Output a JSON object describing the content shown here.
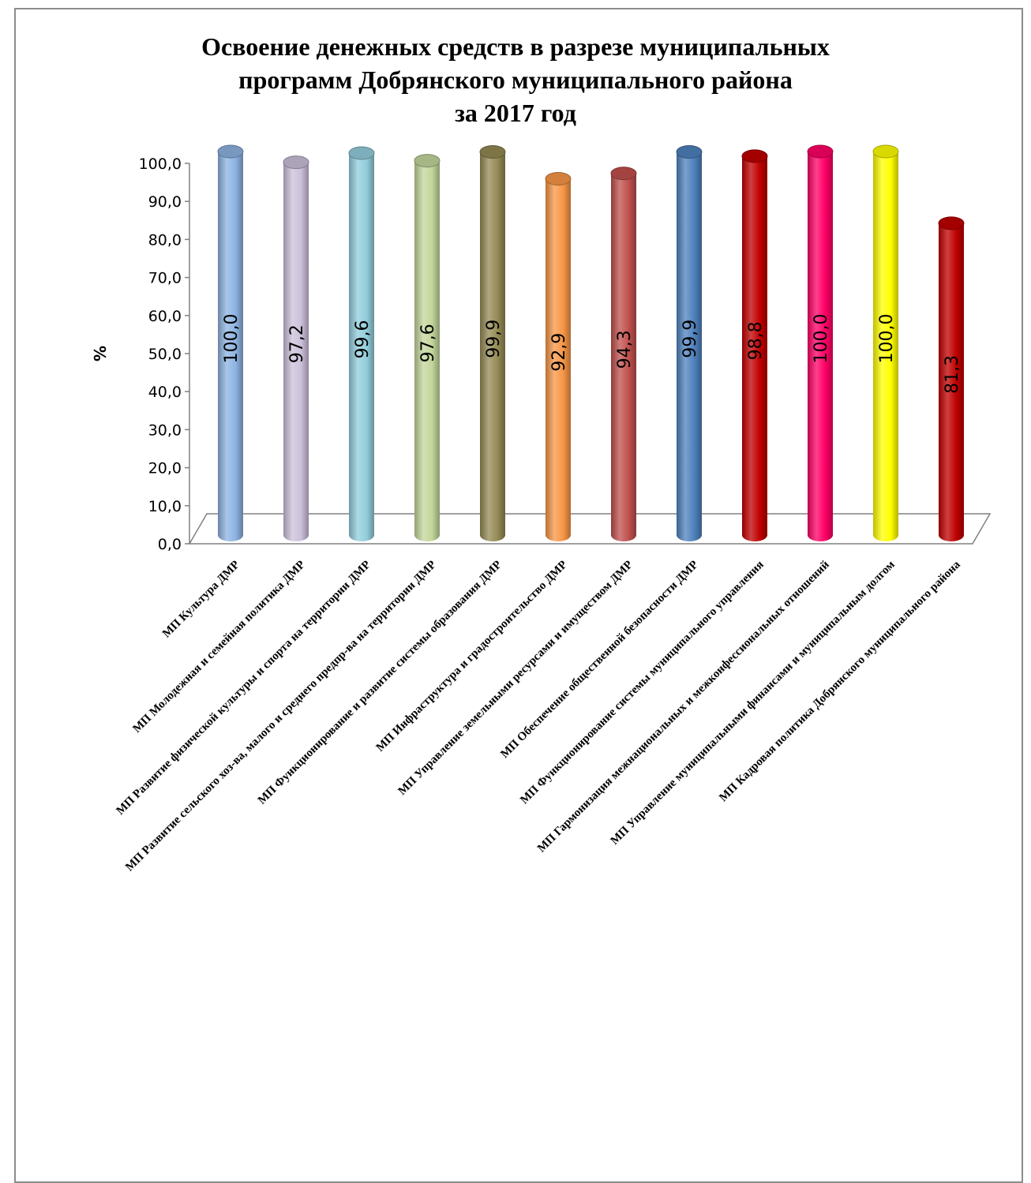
{
  "chart_data": {
    "type": "bar",
    "title_lines": [
      "Освоение денежных средств в разрезе муниципальных",
      "программ Добрянского муниципального района",
      "за 2017 год"
    ],
    "ylabel": "%",
    "ylim": [
      0,
      100
    ],
    "yticks": [
      "0,0",
      "10,0",
      "20,0",
      "30,0",
      "40,0",
      "50,0",
      "60,0",
      "70,0",
      "80,0",
      "90,0",
      "100,0"
    ],
    "categories": [
      "МП Культура ДМР",
      "МП Молодежная и семейная политика ДМР",
      "МП Развитие физической культуры и спорта на территории ДМР",
      "МП Развитие сельского хоз-ва, малого и среднего предпр-ва на территории ДМР",
      "МП Функционирование и развитие системы образования ДМР",
      "МП Инфраструктура и градостроительство ДМР",
      "МП Управление земельными ресурсами и имуществом ДМР",
      "МП Обеспечение общественной безопасности ДМР",
      "МП Функционирование системы муниципального управления",
      "МП Гармонизация  межнациональных и межконфессиональных отношений",
      "МП Управление муниципальными финансами и муниципальным долгом",
      "МП Кадровая политика Добрянского муниципального района"
    ],
    "values": [
      100.0,
      97.2,
      99.6,
      97.6,
      99.9,
      92.9,
      94.3,
      99.9,
      98.8,
      100.0,
      100.0,
      81.3
    ],
    "value_labels": [
      "100,0",
      "97,2",
      "99,6",
      "97,6",
      "99,9",
      "92,9",
      "94,3",
      "99,9",
      "98,8",
      "100,0",
      "100,0",
      "81,3"
    ],
    "colors": [
      "#8db3e2",
      "#ccc0da",
      "#92cddc",
      "#c3d69b",
      "#948a54",
      "#f79646",
      "#c0504d",
      "#4f81bd",
      "#c00000",
      "#ff0066",
      "#ffff00",
      "#c00000"
    ],
    "grid": false,
    "legend": "none"
  }
}
